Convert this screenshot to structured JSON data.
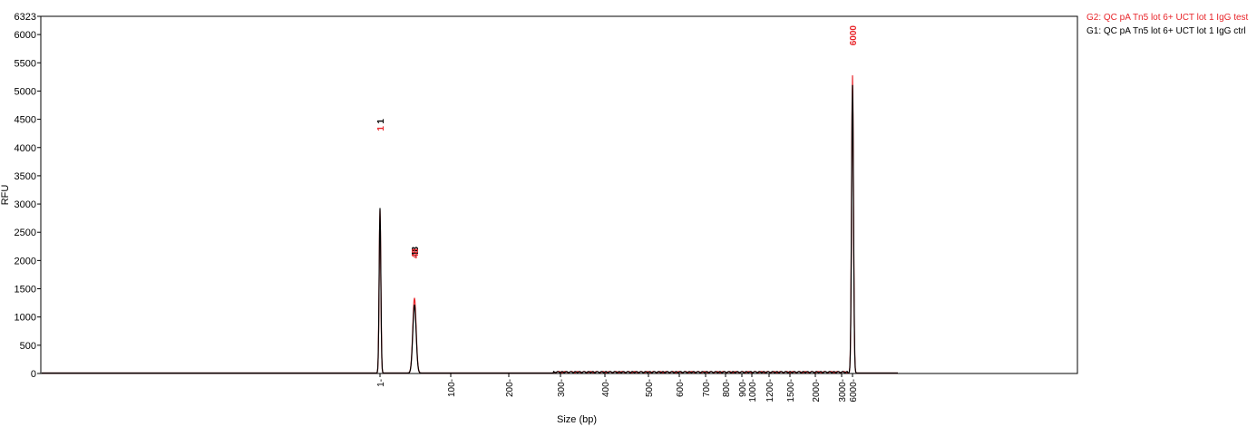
{
  "chart_data": {
    "type": "line",
    "ylabel": "RFU",
    "xlabel": "Size (bp)",
    "ylim": [
      0,
      6323
    ],
    "y_ticks": [
      0,
      500,
      1000,
      1500,
      2000,
      2500,
      3000,
      3500,
      4000,
      4500,
      5000,
      5500,
      6000,
      6323
    ],
    "x_ticks": [
      "1",
      "100",
      "200",
      "300",
      "400",
      "500",
      "600",
      "700",
      "800",
      "900",
      "1000",
      "1200",
      "1500",
      "2000",
      "3000",
      "6000"
    ],
    "x_scale": "ladder (non-linear)",
    "grid": false,
    "legend_position": "top-right, outside plot",
    "series": [
      {
        "name": "G2: QC pA Tn5 lot 6+ UCT lot 1 IgG test",
        "color": "#e8262b",
        "peak_labels": [
          "1",
          "48",
          "6000"
        ],
        "peaks": [
          {
            "size": 1,
            "rfu": 2880
          },
          {
            "size": 48,
            "rfu": 1330
          },
          {
            "size": 6000,
            "rfu": 5270
          }
        ]
      },
      {
        "name": "G1: QC pA Tn5 lot 6+ UCT lot 1 IgG ctrl",
        "color": "#000000",
        "peak_labels": [
          "1",
          "48"
        ],
        "peaks": [
          {
            "size": 1,
            "rfu": 2920
          },
          {
            "size": 48,
            "rfu": 1210
          },
          {
            "size": 6000,
            "rfu": 5100
          }
        ]
      }
    ]
  }
}
